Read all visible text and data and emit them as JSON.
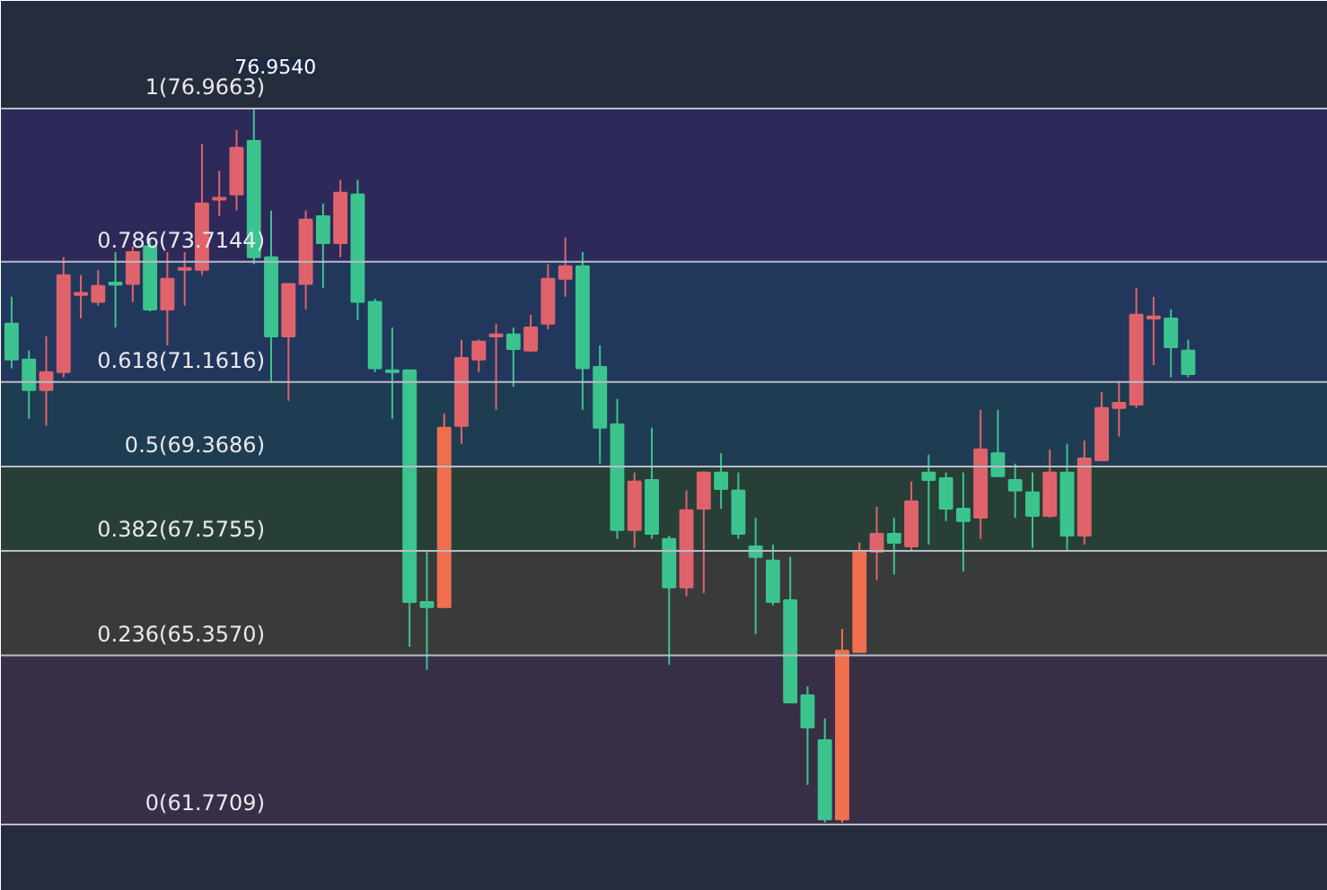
{
  "chart_data": {
    "type": "candlestick",
    "categories": [
      null,
      null,
      null,
      null,
      null,
      null,
      null,
      null,
      null,
      null,
      null,
      null,
      null,
      null,
      null,
      null,
      null,
      null,
      null,
      null,
      null,
      null,
      null,
      null,
      null,
      null,
      null,
      null,
      null,
      null,
      null,
      null,
      null,
      null,
      null,
      null,
      null,
      null,
      null,
      null,
      null,
      null,
      null,
      null,
      null,
      null,
      null,
      null,
      null,
      null,
      null,
      null,
      null,
      null,
      null,
      null,
      null,
      null,
      null,
      null,
      null,
      null,
      null,
      null,
      null,
      null,
      null,
      null,
      null
    ],
    "ohlc": [
      [
        72.4,
        72.97,
        71.45,
        71.64
      ],
      [
        71.64,
        71.83,
        70.38,
        70.99
      ],
      [
        70.99,
        72.13,
        70.23,
        71.37
      ],
      [
        71.37,
        73.81,
        71.26,
        73.43
      ],
      [
        73.05,
        73.43,
        72.51,
        73.01
      ],
      [
        72.86,
        73.54,
        72.78,
        73.2
      ],
      [
        73.27,
        73.92,
        72.32,
        73.24
      ],
      [
        73.24,
        74.04,
        72.86,
        73.92
      ],
      [
        74.04,
        74.19,
        72.66,
        72.7
      ],
      [
        72.7,
        73.92,
        71.94,
        73.35
      ],
      [
        73.54,
        73.92,
        72.78,
        73.58
      ],
      [
        73.54,
        76.21,
        73.43,
        74.95
      ],
      [
        75.03,
        75.64,
        74.68,
        75.07
      ],
      [
        75.14,
        76.51,
        74.8,
        76.13
      ],
      [
        76.28,
        76.95,
        73.66,
        73.81
      ],
      [
        73.81,
        74.8,
        71.14,
        72.13
      ],
      [
        72.13,
        73.24,
        70.76,
        73.24
      ],
      [
        73.24,
        74.8,
        72.7,
        74.61
      ],
      [
        74.68,
        74.95,
        73.16,
        74.11
      ],
      [
        74.11,
        75.45,
        73.81,
        75.18
      ],
      [
        75.14,
        75.45,
        72.47,
        72.86
      ],
      [
        72.86,
        72.93,
        71.37,
        71.45
      ],
      [
        71.41,
        72.32,
        70.38,
        71.37
      ],
      [
        71.41,
        71.41,
        65.54,
        66.49
      ],
      [
        66.49,
        67.56,
        65.05,
        66.38
      ],
      [
        66.38,
        70.49,
        66.38,
        70.19
      ],
      [
        70.23,
        72.06,
        69.85,
        71.67
      ],
      [
        71.64,
        72.06,
        71.37,
        72.02
      ],
      [
        72.17,
        72.4,
        70.57,
        72.13
      ],
      [
        72.17,
        72.32,
        71.06,
        71.86
      ],
      [
        71.83,
        72.59,
        71.79,
        72.32
      ],
      [
        72.4,
        73.66,
        72.28,
        73.35
      ],
      [
        73.35,
        74.23,
        72.97,
        73.62
      ],
      [
        73.62,
        73.92,
        70.57,
        71.45
      ],
      [
        71.48,
        71.94,
        69.43,
        70.19
      ],
      [
        70.26,
        70.8,
        67.83,
        68.02
      ],
      [
        68.02,
        69.24,
        67.64,
        69.05
      ],
      [
        69.08,
        70.19,
        67.83,
        67.94
      ],
      [
        67.83,
        67.9,
        65.16,
        66.8
      ],
      [
        66.8,
        68.86,
        66.61,
        68.44
      ],
      [
        68.47,
        69.27,
        66.68,
        69.24
      ],
      [
        69.24,
        69.65,
        68.47,
        68.89
      ],
      [
        68.86,
        69.24,
        67.83,
        67.94
      ],
      [
        67.67,
        68.28,
        65.81,
        67.45
      ],
      [
        67.37,
        67.71,
        66.42,
        66.49
      ],
      [
        66.53,
        67.45,
        64.36,
        64.36
      ],
      [
        64.51,
        64.7,
        62.61,
        63.83
      ],
      [
        63.56,
        64.02,
        61.81,
        61.88
      ],
      [
        61.88,
        65.92,
        61.81,
        65.46
      ],
      [
        65.43,
        67.75,
        65.43,
        67.56
      ],
      [
        67.56,
        68.51,
        66.95,
        67.94
      ],
      [
        67.94,
        68.28,
        67.07,
        67.75
      ],
      [
        67.67,
        69.05,
        67.56,
        68.63
      ],
      [
        69.24,
        69.62,
        67.71,
        69.08
      ],
      [
        69.12,
        69.24,
        68.21,
        68.47
      ],
      [
        68.47,
        69.24,
        67.14,
        68.21
      ],
      [
        68.28,
        70.57,
        67.83,
        69.73
      ],
      [
        69.65,
        70.57,
        69.16,
        69.16
      ],
      [
        69.08,
        69.43,
        68.28,
        68.86
      ],
      [
        68.82,
        69.24,
        67.64,
        68.32
      ],
      [
        68.32,
        69.73,
        68.28,
        69.24
      ],
      [
        69.24,
        69.85,
        67.56,
        67.9
      ],
      [
        67.9,
        69.92,
        67.71,
        69.54
      ],
      [
        69.5,
        70.95,
        69.5,
        70.61
      ],
      [
        70.61,
        71.18,
        70.0,
        70.72
      ],
      [
        70.68,
        73.16,
        70.61,
        72.59
      ],
      [
        72.55,
        72.97,
        71.52,
        72.51
      ],
      [
        72.51,
        72.7,
        71.26,
        71.9
      ],
      [
        71.83,
        72.06,
        71.26,
        71.33
      ]
    ],
    "colors": [
      "#3cc48e",
      "#3cc48e",
      "#e0636b",
      "#e0636b",
      "#e0636b",
      "#e0636b",
      "#3cc48e",
      "#e0636b",
      "#3cc48e",
      "#e0636b",
      "#e0636b",
      "#e0636b",
      "#e0636b",
      "#e0636b",
      "#3cc48e",
      "#3cc48e",
      "#e0636b",
      "#e0636b",
      "#3cc48e",
      "#e0636b",
      "#3cc48e",
      "#3cc48e",
      "#3cc48e",
      "#3cc48e",
      "#3cc48e",
      "#ef6f4f",
      "#e0636b",
      "#e0636b",
      "#e0636b",
      "#3cc48e",
      "#e0636b",
      "#e0636b",
      "#e0636b",
      "#3cc48e",
      "#3cc48e",
      "#3cc48e",
      "#e0636b",
      "#3cc48e",
      "#3cc48e",
      "#e0636b",
      "#e0636b",
      "#3cc48e",
      "#3cc48e",
      "#3cc48e",
      "#3cc48e",
      "#3cc48e",
      "#3cc48e",
      "#3cc48e",
      "#ef6f4f",
      "#ef6f4f",
      "#e0636b",
      "#3cc48e",
      "#e0636b",
      "#3cc48e",
      "#3cc48e",
      "#3cc48e",
      "#e0636b",
      "#3cc48e",
      "#3cc48e",
      "#3cc48e",
      "#e0636b",
      "#3cc48e",
      "#e0636b",
      "#e0636b",
      "#e0636b",
      "#e0636b",
      "#e0636b",
      "#3cc48e",
      "#3cc48e"
    ],
    "ylim": [
      60.36,
      79.25
    ],
    "tick_labels": false,
    "grid": false,
    "ref_lines": [
      {
        "axis": "y",
        "value": 76.9663,
        "label": "1(76.9663)",
        "color": "#b8bcc8"
      },
      {
        "axis": "y",
        "value": 73.7144,
        "label": "0.786(73.7144)",
        "color": "#b8bcc8"
      },
      {
        "axis": "y",
        "value": 71.1616,
        "label": "0.618(71.1616)",
        "color": "#b8bcc8"
      },
      {
        "axis": "y",
        "value": 69.3686,
        "label": "0.5(69.3686)",
        "color": "#b8bcc8"
      },
      {
        "axis": "y",
        "value": 67.5755,
        "label": "0.382(67.5755)",
        "color": "#b8bcc8"
      },
      {
        "axis": "y",
        "value": 65.357,
        "label": "0.236(65.3570)",
        "color": "#b8bcc8"
      },
      {
        "axis": "y",
        "value": 61.7709,
        "label": "0(61.7709)",
        "color": "#b8bcc8"
      }
    ],
    "bands": [
      {
        "axis": "y",
        "from": 73.7144,
        "to": 76.9663,
        "color": "#2d2a5a"
      },
      {
        "axis": "y",
        "from": 71.1616,
        "to": 73.7144,
        "color": "#22375c"
      },
      {
        "axis": "y",
        "from": 69.3686,
        "to": 71.1616,
        "color": "#1e3d52"
      },
      {
        "axis": "y",
        "from": 67.5755,
        "to": 69.3686,
        "color": "#283f37"
      },
      {
        "axis": "y",
        "from": 65.357,
        "to": 67.5755,
        "color": "#383b39"
      },
      {
        "axis": "y",
        "from": 61.7709,
        "to": 65.357,
        "color": "#382f46"
      }
    ],
    "annotations": [
      {
        "text": "76.9540",
        "y": 76.95
      }
    ]
  }
}
